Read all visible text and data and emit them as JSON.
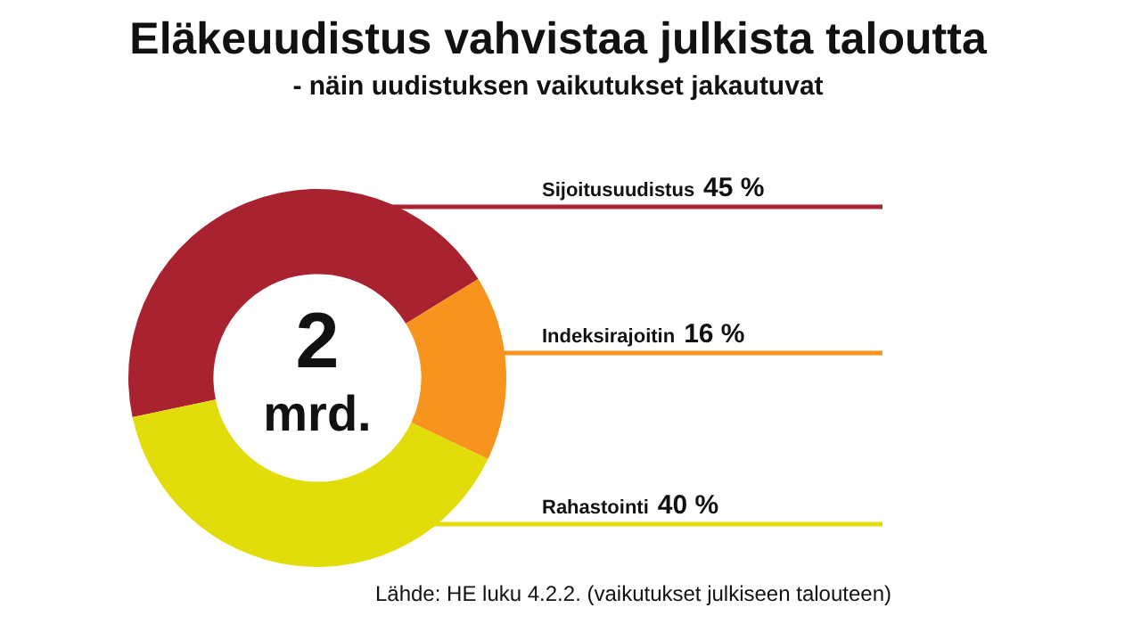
{
  "chart_data": {
    "type": "donut",
    "title": "Eläkeuudistus vahvistaa julkista taloutta",
    "subtitle": "- näin uudistuksen vaikutukset jakautuvat",
    "categories": [
      "Sijoitusuudistus",
      "Indeksirajoitin",
      "Rahastointi"
    ],
    "values": [
      45,
      16,
      40
    ],
    "colors": [
      "#a8222f",
      "#f7941d",
      "#e2dc0a"
    ],
    "value_labels": [
      "45 %",
      "16 %",
      "40 %"
    ],
    "annotations": [
      "2",
      "mrd.",
      "Lähde: HE luku 4.2.2. (vaikutukset julkiseen talouteen)"
    ],
    "legend": false
  }
}
